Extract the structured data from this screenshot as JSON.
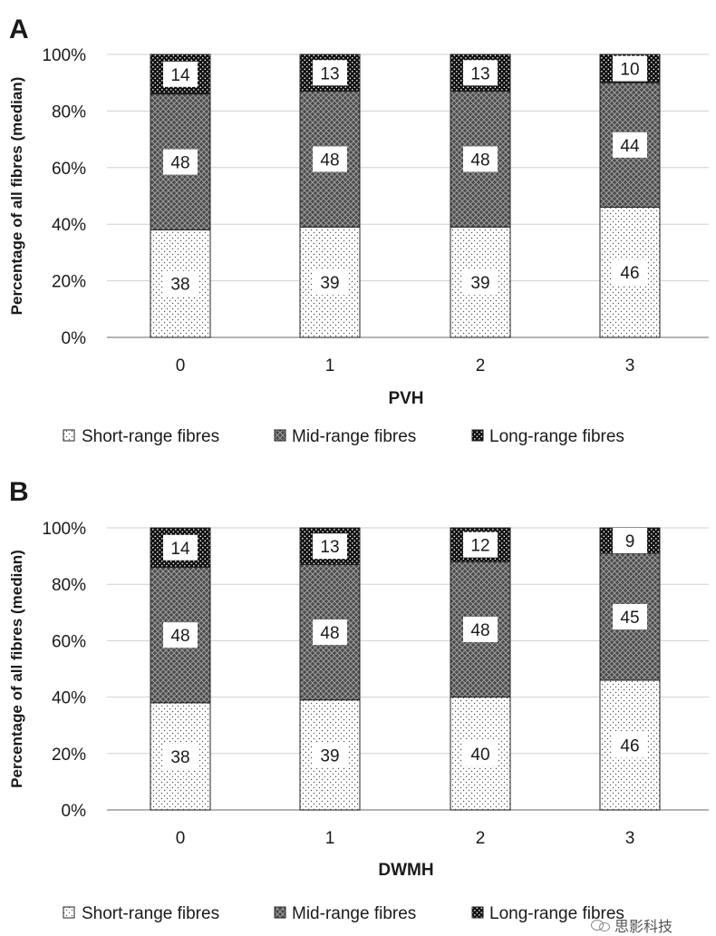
{
  "chart_data": [
    {
      "type": "bar",
      "stacked": true,
      "panel_label": "A",
      "xlabel": "PVH",
      "ylabel": "Percentage of all fibres (median)",
      "categories": [
        "0",
        "1",
        "2",
        "3"
      ],
      "series": [
        {
          "name": "Short-range fibres",
          "pattern": "dots",
          "values": [
            38,
            39,
            39,
            46
          ]
        },
        {
          "name": "Mid-range fibres",
          "pattern": "crosshatch",
          "values": [
            48,
            48,
            48,
            44
          ]
        },
        {
          "name": "Long-range fibres",
          "pattern": "dark-dots",
          "values": [
            14,
            13,
            13,
            10
          ]
        }
      ],
      "ylim": [
        0,
        100
      ],
      "yticks": [
        "0%",
        "20%",
        "40%",
        "60%",
        "80%",
        "100%"
      ],
      "grid": true,
      "legend_position": "bottom"
    },
    {
      "type": "bar",
      "stacked": true,
      "panel_label": "B",
      "xlabel": "DWMH",
      "ylabel": "Percentage of all fibres (median)",
      "categories": [
        "0",
        "1",
        "2",
        "3"
      ],
      "series": [
        {
          "name": "Short-range fibres",
          "pattern": "dots",
          "values": [
            38,
            39,
            40,
            46
          ]
        },
        {
          "name": "Mid-range fibres",
          "pattern": "crosshatch",
          "values": [
            48,
            48,
            48,
            45
          ]
        },
        {
          "name": "Long-range fibres",
          "pattern": "dark-dots",
          "values": [
            14,
            13,
            12,
            9
          ]
        }
      ],
      "ylim": [
        0,
        100
      ],
      "yticks": [
        "0%",
        "20%",
        "40%",
        "60%",
        "80%",
        "100%"
      ],
      "grid": true,
      "legend_position": "bottom"
    }
  ],
  "colors": {
    "ink": "#1a1a1a",
    "grid": "#d0d0d0",
    "bar_dark": "#3a3a3a"
  },
  "watermark": {
    "text": "思影科技",
    "icon": "wechat-icon"
  }
}
